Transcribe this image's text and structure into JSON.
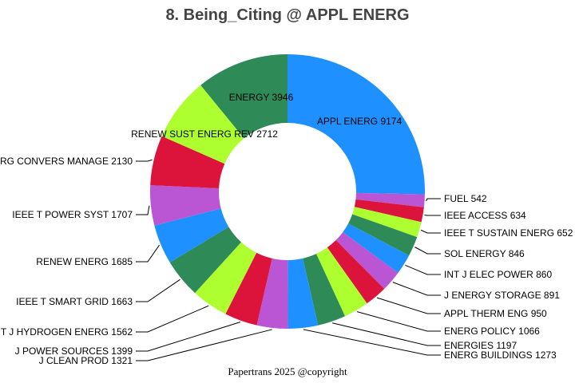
{
  "chart_data": {
    "type": "pie",
    "donut": true,
    "title": "8. Being_Citing @ APPL ENERG",
    "slices": [
      {
        "label": "APPL ENERG",
        "value": 9174,
        "color": "#1E90FF"
      },
      {
        "label": "FUEL",
        "value": 542,
        "color": "#BA55D3"
      },
      {
        "label": "IEEE ACCESS",
        "value": 634,
        "color": "#DC143C"
      },
      {
        "label": "IEEE T SUSTAIN ENERG",
        "value": 652,
        "color": "#ADFF2F"
      },
      {
        "label": "SOL ENERGY",
        "value": 846,
        "color": "#2E8B57"
      },
      {
        "label": "INT J ELEC POWER",
        "value": 860,
        "color": "#1E90FF"
      },
      {
        "label": "J ENERGY STORAGE",
        "value": 891,
        "color": "#BA55D3"
      },
      {
        "label": "APPL THERM ENG",
        "value": 950,
        "color": "#DC143C"
      },
      {
        "label": "ENERG POLICY",
        "value": 1066,
        "color": "#ADFF2F"
      },
      {
        "label": "ENERGIES",
        "value": 1197,
        "color": "#2E8B57"
      },
      {
        "label": "ENERG BUILDINGS",
        "value": 1273,
        "color": "#1E90FF"
      },
      {
        "label": "J CLEAN PROD",
        "value": 1321,
        "color": "#BA55D3"
      },
      {
        "label": "J POWER SOURCES",
        "value": 1399,
        "color": "#DC143C"
      },
      {
        "label": "INT J HYDROGEN ENERG",
        "value": 1562,
        "color": "#ADFF2F"
      },
      {
        "label": "IEEE T SMART GRID",
        "value": 1663,
        "color": "#2E8B57"
      },
      {
        "label": "RENEW ENERG",
        "value": 1685,
        "color": "#1E90FF"
      },
      {
        "label": "IEEE T POWER SYST",
        "value": 1707,
        "color": "#BA55D3"
      },
      {
        "label": "ENERG CONVERS MANAGE",
        "value": 2130,
        "color": "#DC143C"
      },
      {
        "label": "RENEW SUST ENERG REV",
        "value": 2712,
        "color": "#ADFF2F"
      },
      {
        "label": "ENERGY",
        "value": 3946,
        "color": "#2E8B57"
      }
    ],
    "start_angle": "12 o'clock",
    "direction": "clockwise"
  },
  "footer": {
    "credit": "Papertrans 2025 @copyright"
  }
}
